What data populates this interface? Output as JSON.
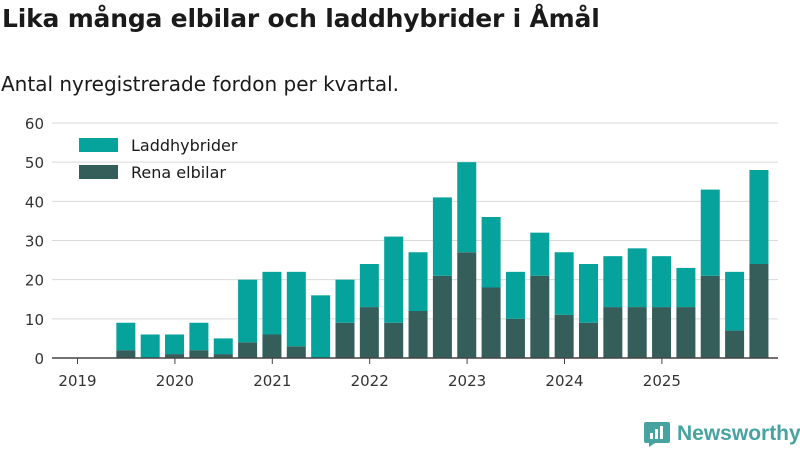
{
  "title": "Lika många elbilar och laddhybrider i Åmål",
  "subtitle": "Antal nyregistrerade fordon per kvartal.",
  "brand": {
    "name": "Newsworthy"
  },
  "chart_data": {
    "type": "bar",
    "stacked": true,
    "x_tick_labels": [
      "2019",
      "2020",
      "2021",
      "2022",
      "2023",
      "2024",
      "2025"
    ],
    "quarters": [
      "2019Q1",
      "2019Q2",
      "2019Q3",
      "2019Q4",
      "2020Q1",
      "2020Q2",
      "2020Q3",
      "2020Q4",
      "2021Q1",
      "2021Q2",
      "2021Q3",
      "2021Q4",
      "2022Q1",
      "2022Q2",
      "2022Q3",
      "2022Q4",
      "2023Q1",
      "2023Q2",
      "2023Q3",
      "2023Q4",
      "2024Q1",
      "2024Q2",
      "2024Q3",
      "2024Q4",
      "2025Q1",
      "2025Q2",
      "2025Q3",
      "2025Q4"
    ],
    "series": [
      {
        "name": "Rena elbilar",
        "color": "#355e5b",
        "values": [
          0,
          2,
          0,
          1,
          2,
          1,
          4,
          6,
          3,
          0,
          9,
          13,
          9,
          12,
          21,
          27,
          18,
          10,
          21,
          11,
          9,
          13,
          13,
          13,
          13,
          21,
          7,
          24
        ]
      },
      {
        "name": "Laddhybrider",
        "color": "#06a29c",
        "values": [
          0,
          7,
          6,
          5,
          7,
          4,
          16,
          16,
          19,
          16,
          11,
          11,
          22,
          15,
          20,
          23,
          18,
          12,
          11,
          16,
          15,
          13,
          15,
          13,
          10,
          22,
          15,
          24
        ]
      }
    ],
    "legend": [
      "Laddhybrider",
      "Rena elbilar"
    ],
    "legend_position": "top-left",
    "ylim": [
      0,
      60
    ],
    "yticks": [
      0,
      10,
      20,
      30,
      40,
      50,
      60
    ],
    "grid": true,
    "xlabel": "",
    "ylabel": ""
  }
}
